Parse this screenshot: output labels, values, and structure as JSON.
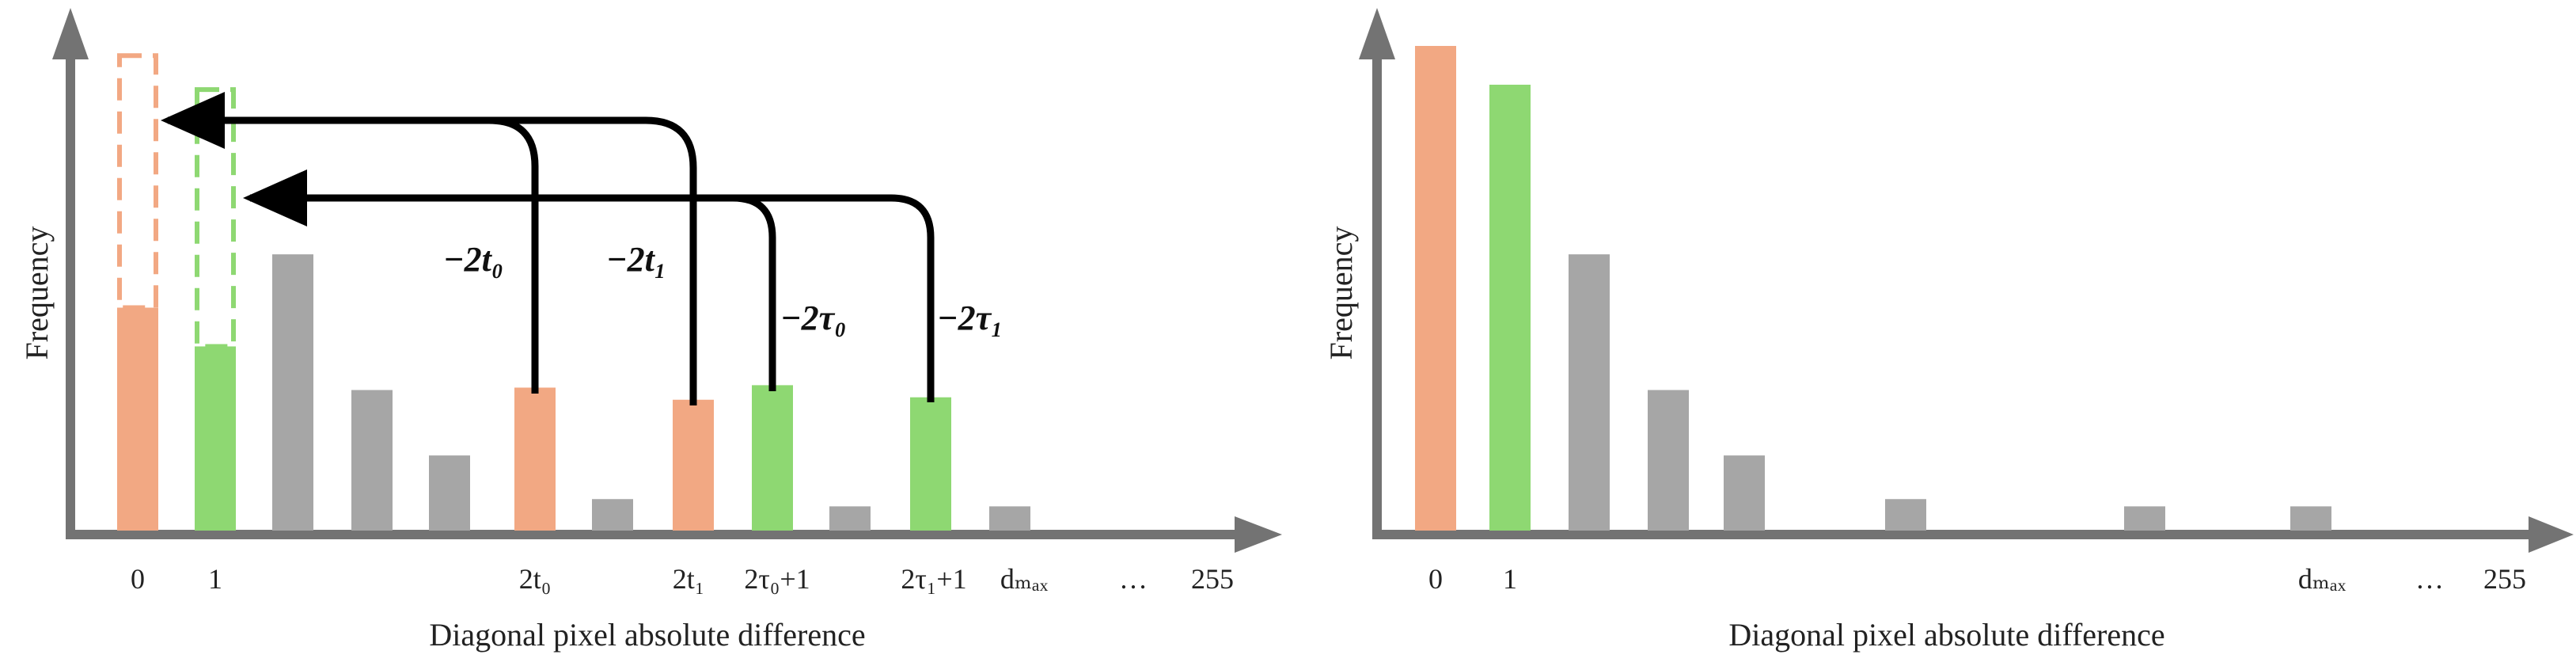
{
  "colors": {
    "orange": "#F2A883",
    "green": "#8ED872",
    "gray": "#A6A6A6",
    "axis": "#737373",
    "arrow": "#000000"
  },
  "left": {
    "ylabel": "Frequency",
    "xlabel": "Diagonal pixel absolute difference",
    "ticks": {
      "t0": "0",
      "t1": "1",
      "t2t0": "2t₀",
      "t2t1": "2t₁",
      "t2tau0": "2τ₀+1",
      "t2tau1": "2τ₁+1",
      "tdmax": "dₘₐₓ",
      "tell": "…",
      "t255": "255"
    },
    "shift_labels": {
      "m2t0": "−2t₀",
      "m2t1": "−2t₁",
      "m2tau0": "−2τ₀",
      "m2tau1": "−2τ₁"
    },
    "bars": [
      {
        "id": "bin-0",
        "color": "orange",
        "value": 0.46,
        "ghost_value": 0.98
      },
      {
        "id": "bin-1",
        "color": "green",
        "value": 0.38,
        "ghost_value": 0.91
      },
      {
        "id": "bin-2",
        "color": "gray",
        "value": 0.57
      },
      {
        "id": "bin-3",
        "color": "gray",
        "value": 0.29
      },
      {
        "id": "bin-4",
        "color": "gray",
        "value": 0.155
      },
      {
        "id": "bin-2t0",
        "color": "orange",
        "value": 0.295
      },
      {
        "id": "bin-mid",
        "color": "gray",
        "value": 0.065
      },
      {
        "id": "bin-2t1",
        "color": "orange",
        "value": 0.27
      },
      {
        "id": "bin-2tau0",
        "color": "green",
        "value": 0.3
      },
      {
        "id": "bin-small",
        "color": "gray",
        "value": 0.05
      },
      {
        "id": "bin-2tau1",
        "color": "green",
        "value": 0.275
      },
      {
        "id": "bin-dmax",
        "color": "gray",
        "value": 0.05
      }
    ]
  },
  "right": {
    "ylabel": "Frequency",
    "xlabel": "Diagonal pixel absolute difference",
    "ticks": {
      "t0": "0",
      "t1": "1",
      "tdmax": "dₘₐₓ",
      "tell": "…",
      "t255": "255"
    },
    "bars": [
      {
        "id": "bin-0",
        "color": "orange",
        "value": 1.0
      },
      {
        "id": "bin-1",
        "color": "green",
        "value": 0.92
      },
      {
        "id": "bin-2",
        "color": "gray",
        "value": 0.57
      },
      {
        "id": "bin-3",
        "color": "gray",
        "value": 0.29
      },
      {
        "id": "bin-4",
        "color": "gray",
        "value": 0.155
      },
      {
        "id": "bin-mid",
        "color": "gray",
        "value": 0.065
      },
      {
        "id": "bin-small",
        "color": "gray",
        "value": 0.05
      },
      {
        "id": "bin-dmax",
        "color": "gray",
        "value": 0.05
      }
    ]
  }
}
